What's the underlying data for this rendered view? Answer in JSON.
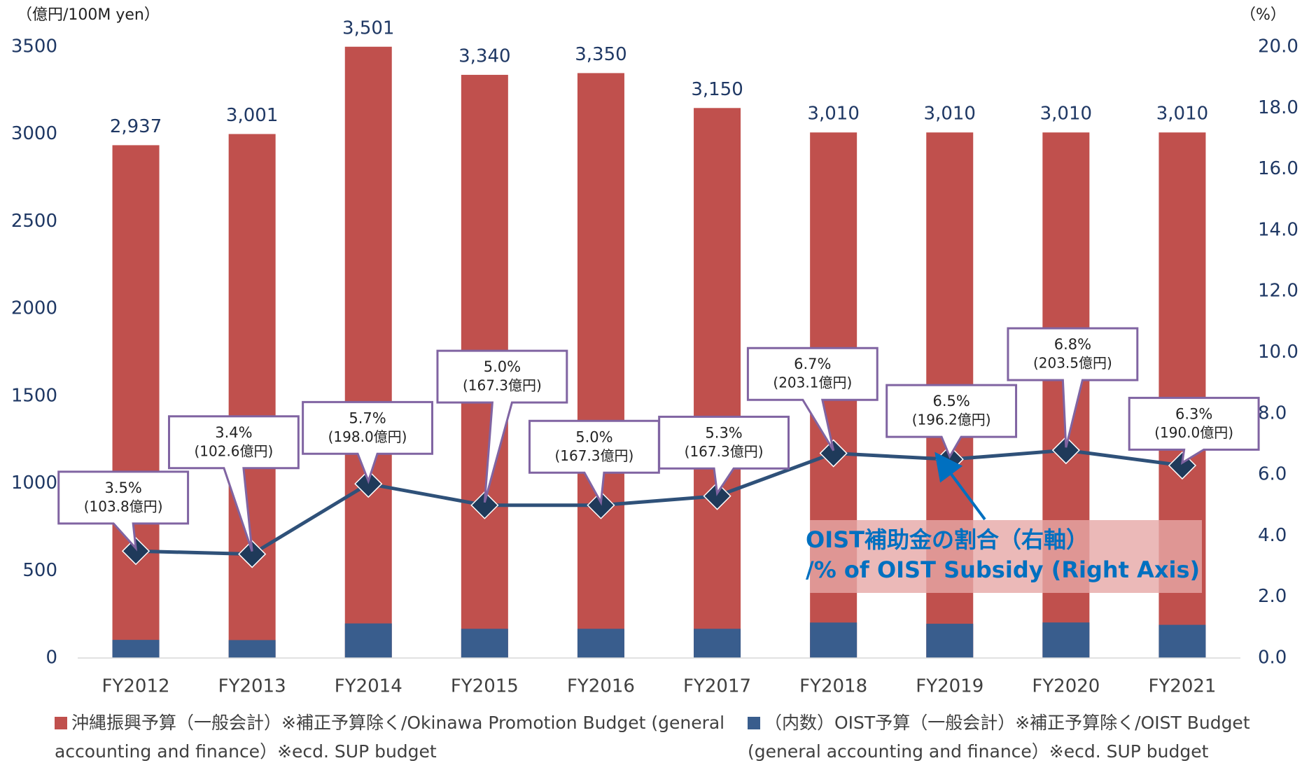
{
  "chart_data": {
    "type": "bar",
    "y_label": "（億円/100M yen）",
    "y2_label": "（%）",
    "categories": [
      "FY2012",
      "FY2013",
      "FY2014",
      "FY2015",
      "FY2016",
      "FY2017",
      "FY2018",
      "FY2019",
      "FY2020",
      "FY2021"
    ],
    "series": [
      {
        "name": "沖縄振興予算（一般会計）※補正予算除く/Okinawa Promotion Budget (general accounting and finance）※ecd. SUP budget",
        "type": "bar",
        "color": "#c0504d",
        "values": [
          2937,
          3001,
          3501,
          3340,
          3350,
          3150,
          3010,
          3010,
          3010,
          3010
        ],
        "value_labels": [
          "2,937",
          "3,001",
          "3,501",
          "3,340",
          "3,350",
          "3,150",
          "3,010",
          "3,010",
          "3,010",
          "3,010"
        ]
      },
      {
        "name": "（内数）OIST予算（一般会計）※補正予算除く/OIST Budget (general accounting and finance）※ecd. SUP budget",
        "type": "bar",
        "color": "#395d8d",
        "values": [
          103.8,
          102.6,
          198.0,
          167.3,
          167.3,
          167.3,
          203.1,
          196.2,
          203.5,
          190.0
        ],
        "value_labels": [
          "(103.8億円)",
          "(102.6億円)",
          "(198.0億円)",
          "(167.3億円)",
          "(167.3億円)",
          "(167.3億円)",
          "(203.1億円)",
          "(196.2億円)",
          "(203.5億円)",
          "(190.0億円)"
        ]
      },
      {
        "type": "line",
        "axis": "y2",
        "color": "#2f5179",
        "marker_color": "#1f3a5a",
        "values": [
          3.5,
          3.4,
          5.7,
          5.0,
          5.0,
          5.3,
          6.7,
          6.5,
          6.8,
          6.3
        ],
        "value_labels": [
          "3.5%",
          "3.4%",
          "5.7%",
          "5.0%",
          "5.0%",
          "5.3%",
          "6.7%",
          "6.5%",
          "6.8%",
          "6.3%"
        ]
      }
    ],
    "annotations": [
      "OIST補助金の割合（右軸）",
      "/% of OIST Subsidy (Right Axis)"
    ],
    "ylim": [
      0,
      3500
    ],
    "yticks": [
      0,
      500,
      1000,
      1500,
      2000,
      2500,
      3000,
      3500
    ],
    "y2lim": [
      0,
      20
    ],
    "y2ticks": [
      {
        "value": 0,
        "label": "0.0"
      },
      {
        "value": 2,
        "label": "2.0"
      },
      {
        "value": 4,
        "label": "4.0"
      },
      {
        "value": 6,
        "label": "6.0"
      },
      {
        "value": 8,
        "label": "8.0"
      },
      {
        "value": 10,
        "label": "10.0"
      },
      {
        "value": 12,
        "label": "12.0"
      },
      {
        "value": 14,
        "label": "14.0"
      },
      {
        "value": 16,
        "label": "16.0"
      },
      {
        "value": 18,
        "label": "18.0"
      },
      {
        "value": 20,
        "label": "20.0"
      }
    ],
    "grid": false,
    "legend": "bottom"
  }
}
